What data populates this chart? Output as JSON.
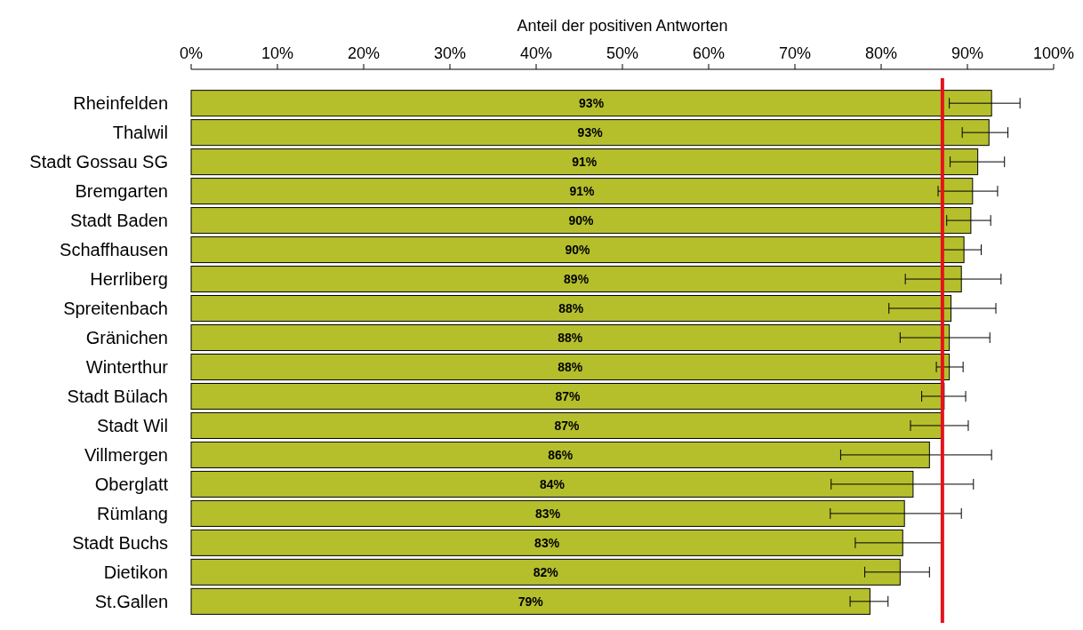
{
  "chart_data": {
    "type": "bar",
    "orientation": "horizontal",
    "xlabel": "Anteil der positiven Antworten",
    "categories": [
      "Rheinfelden",
      "Thalwil",
      "Stadt Gossau SG",
      "Bremgarten",
      "Stadt Baden",
      "Schaffhausen",
      "Herrliberg",
      "Spreitenbach",
      "Gränichen",
      "Winterthur",
      "Stadt Bülach",
      "Stadt Wil",
      "Villmergen",
      "Oberglatt",
      "Rümlang",
      "Stadt Buchs",
      "Dietikon",
      "St.Gallen"
    ],
    "values": [
      92.8,
      92.5,
      91.2,
      90.6,
      90.4,
      89.6,
      89.3,
      88.1,
      87.9,
      87.9,
      87.3,
      87.1,
      85.6,
      83.7,
      82.7,
      82.5,
      82.2,
      78.7
    ],
    "errors": [
      [
        87.9,
        96.1
      ],
      [
        89.4,
        94.7
      ],
      [
        88,
        94.3
      ],
      [
        86.6,
        93.5
      ],
      [
        87.6,
        92.7
      ],
      [
        87.1,
        91.6
      ],
      [
        82.8,
        93.9
      ],
      [
        80.9,
        93.3
      ],
      [
        82.2,
        92.6
      ],
      [
        86.4,
        89.5
      ],
      [
        84.7,
        89.8
      ],
      [
        83.4,
        90.1
      ],
      [
        75.3,
        92.8
      ],
      [
        74.2,
        90.7
      ],
      [
        74.1,
        89.3
      ],
      [
        77,
        87
      ],
      [
        78.1,
        85.6
      ],
      [
        76.4,
        80.8
      ]
    ],
    "value_labels": [
      "93%",
      "93%",
      "91%",
      "91%",
      "90%",
      "90%",
      "89%",
      "88%",
      "88%",
      "88%",
      "87%",
      "87%",
      "86%",
      "84%",
      "83%",
      "83%",
      "82%",
      "79%"
    ],
    "color": "#b5bf2c",
    "xlim": [
      0,
      100
    ],
    "xticks": [
      {
        "value": 0,
        "label": "0%"
      },
      {
        "value": 10,
        "label": "10%"
      },
      {
        "value": 20,
        "label": "20%"
      },
      {
        "value": 30,
        "label": "30%"
      },
      {
        "value": 40,
        "label": "40%"
      },
      {
        "value": 50,
        "label": "50%"
      },
      {
        "value": 60,
        "label": "60%"
      },
      {
        "value": 70,
        "label": "70%"
      },
      {
        "value": 80,
        "label": "80%"
      },
      {
        "value": 90,
        "label": "90%"
      },
      {
        "value": 100,
        "label": "100%"
      }
    ],
    "ref_lines": [
      {
        "axis": "x",
        "value": 87.1,
        "color": "#e3141b"
      }
    ],
    "grid": false
  }
}
